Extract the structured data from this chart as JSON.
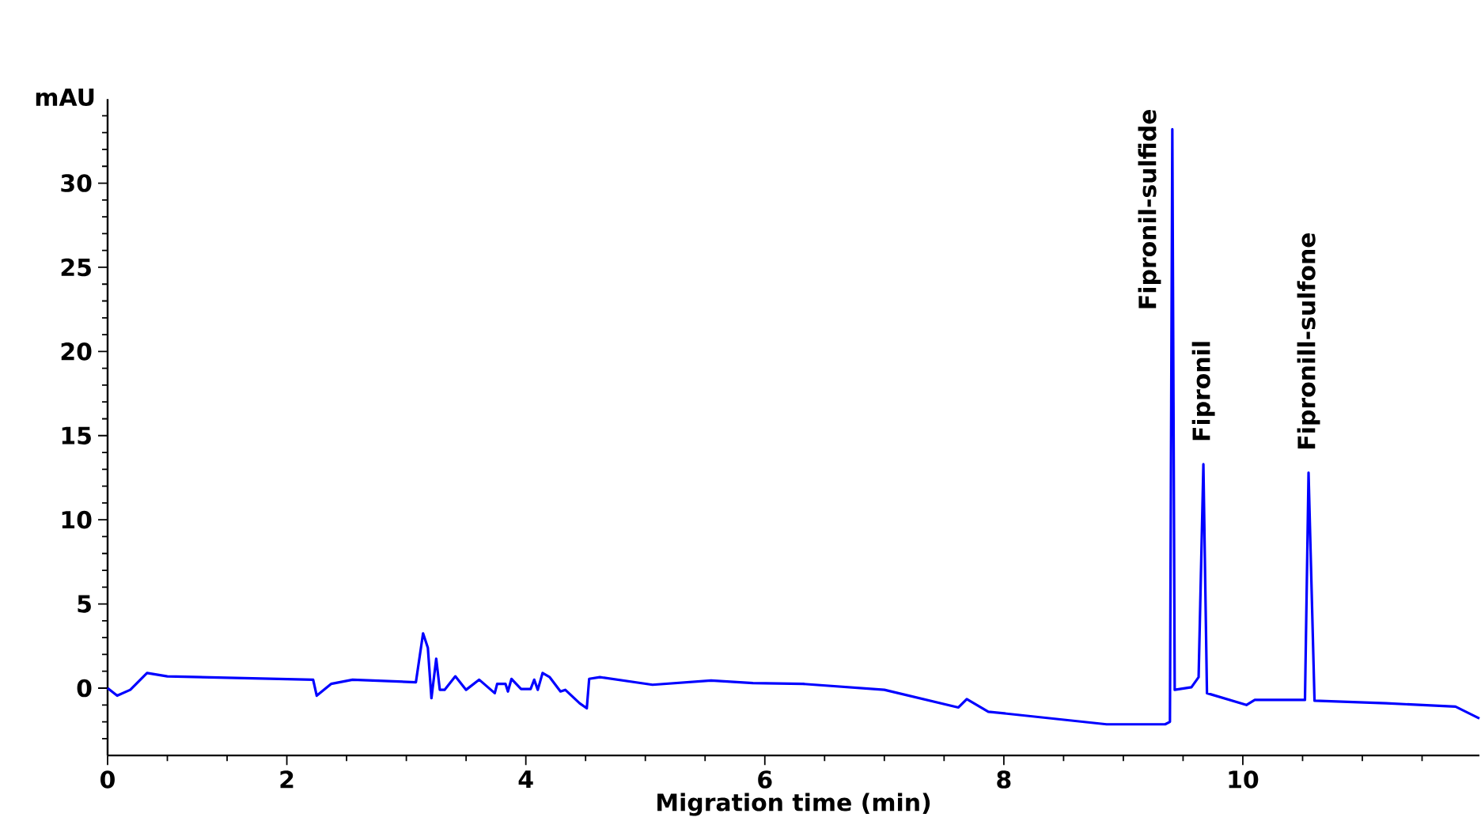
{
  "chart_data": {
    "type": "line",
    "xlabel": "Migration time (min)",
    "ylabel": "mAU",
    "xlim": [
      0.5,
      11.98
    ],
    "ylim": [
      -4,
      35
    ],
    "xticks": [
      {
        "value": 0.5,
        "label": "0"
      },
      {
        "value": 1,
        "label": null
      },
      {
        "value": 1.5,
        "label": null
      },
      2,
      {
        "value": 2.5,
        "label": null
      },
      {
        "value": 3,
        "label": null
      },
      {
        "value": 3.5,
        "label": null
      },
      4,
      {
        "value": 4.5,
        "label": null
      },
      {
        "value": 5,
        "label": null
      },
      {
        "value": 5.5,
        "label": null
      },
      6,
      {
        "value": 6.5,
        "label": null
      },
      {
        "value": 7,
        "label": null
      },
      {
        "value": 7.5,
        "label": null
      },
      8,
      {
        "value": 8.5,
        "label": null
      },
      {
        "value": 9,
        "label": null
      },
      {
        "value": 9.5,
        "label": null
      },
      10,
      {
        "value": 10.5,
        "label": null
      },
      {
        "value": 11,
        "label": null
      },
      {
        "value": 11.5,
        "label": null
      }
    ],
    "yticks": [
      {
        "value": -3,
        "label": null
      },
      {
        "value": -2,
        "label": null
      },
      {
        "value": -1,
        "label": null
      },
      0,
      {
        "value": 1,
        "label": null
      },
      {
        "value": 2,
        "label": null
      },
      {
        "value": 3,
        "label": null
      },
      {
        "value": 4,
        "label": null
      },
      5,
      {
        "value": 6,
        "label": null
      },
      {
        "value": 7,
        "label": null
      },
      {
        "value": 8,
        "label": null
      },
      {
        "value": 9,
        "label": null
      },
      10,
      {
        "value": 11,
        "label": null
      },
      {
        "value": 12,
        "label": null
      },
      {
        "value": 13,
        "label": null
      },
      {
        "value": 14,
        "label": null
      },
      15,
      {
        "value": 16,
        "label": null
      },
      {
        "value": 17,
        "label": null
      },
      {
        "value": 18,
        "label": null
      },
      {
        "value": 19,
        "label": null
      },
      20,
      {
        "value": 21,
        "label": null
      },
      {
        "value": 22,
        "label": null
      },
      {
        "value": 23,
        "label": null
      },
      {
        "value": 24,
        "label": null
      },
      25,
      {
        "value": 26,
        "label": null
      },
      {
        "value": 27,
        "label": null
      },
      {
        "value": 28,
        "label": null
      },
      {
        "value": 29,
        "label": null
      },
      30,
      {
        "value": 31,
        "label": null
      },
      {
        "value": 32,
        "label": null
      },
      {
        "value": 33,
        "label": null
      },
      {
        "value": 34,
        "label": null
      }
    ],
    "grid": false,
    "marker": "none",
    "line_style": "solid",
    "series": [
      {
        "color": "#0000ff",
        "x": [
          0.5,
          0.58,
          0.69,
          0.83,
          1.0,
          2.22,
          2.25,
          2.37,
          2.55,
          3.08,
          3.14,
          3.18,
          3.21,
          3.25,
          3.28,
          3.32,
          3.41,
          3.5,
          3.61,
          3.74,
          3.76,
          3.83,
          3.85,
          3.88,
          3.96,
          4.04,
          4.07,
          4.1,
          4.14,
          4.2,
          4.29,
          4.33,
          4.45,
          4.51,
          4.53,
          4.62,
          5.06,
          5.55,
          5.9,
          6.32,
          7.0,
          7.62,
          7.69,
          7.87,
          8.86,
          9.35,
          9.39,
          9.41,
          9.43,
          9.57,
          9.63,
          9.67,
          9.7,
          10.03,
          10.1,
          10.52,
          10.55,
          10.6,
          11.2,
          11.78,
          11.98
        ],
        "values": [
          0,
          -0.45,
          -0.1,
          0.9,
          0.7,
          0.5,
          -0.45,
          0.25,
          0.5,
          0.35,
          3.25,
          2.4,
          -0.6,
          1.75,
          -0.1,
          -0.1,
          0.7,
          -0.1,
          0.5,
          -0.3,
          0.25,
          0.25,
          -0.2,
          0.55,
          -0.05,
          -0.05,
          0.5,
          -0.1,
          0.9,
          0.65,
          -0.2,
          -0.1,
          -0.9,
          -1.2,
          0.55,
          0.65,
          0.2,
          0.45,
          0.3,
          0.25,
          -0.1,
          -1.15,
          -0.65,
          -1.4,
          -2.15,
          -2.15,
          -2.0,
          33.2,
          -0.1,
          0.05,
          0.65,
          13.3,
          -0.3,
          -1.0,
          -0.7,
          -0.7,
          12.8,
          -0.75,
          -0.9,
          -1.1,
          -1.8
        ]
      }
    ],
    "annotations": [
      {
        "text": "Fipronil-sulfide",
        "x": 9.41,
        "y": 33.2
      },
      {
        "text": "Fipronil",
        "x": 9.67,
        "y": 13.3
      },
      {
        "text": "Fipronill-sulfone",
        "x": 10.55,
        "y": 12.8
      }
    ]
  }
}
